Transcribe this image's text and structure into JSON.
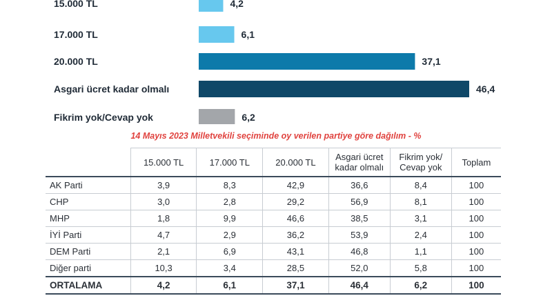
{
  "chart_data": {
    "type": "bar",
    "orientation": "horizontal",
    "categories": [
      "15.000 TL",
      "17.000 TL",
      "20.000 TL",
      "Asgari ücret kadar olmalı",
      "Fikrim yok/Cevap yok"
    ],
    "values": [
      4.2,
      6.1,
      37.1,
      46.4,
      6.2
    ],
    "value_labels": [
      "4,2",
      "6,1",
      "37,1",
      "46,4",
      "6,2"
    ],
    "colors": [
      "#67c8ee",
      "#67c8ee",
      "#0d7aaa",
      "#0f4868",
      "#a3a6aa"
    ],
    "title": "",
    "xlabel": "",
    "ylabel": ""
  },
  "table": {
    "title": "14 Mayıs 2023 Milletvekili seçiminde oy verilen partiye göre dağılım - %",
    "headers": [
      "",
      "15.000 TL",
      "17.000 TL",
      "20.000 TL",
      "Asgari ücret kadar olmalı",
      "Fikrim yok/ Cevap yok",
      "Toplam"
    ],
    "rows": [
      [
        "AK Parti",
        "3,9",
        "8,3",
        "42,9",
        "36,6",
        "8,4",
        "100"
      ],
      [
        "CHP",
        "3,0",
        "2,8",
        "29,2",
        "56,9",
        "8,1",
        "100"
      ],
      [
        "MHP",
        "1,8",
        "9,9",
        "46,6",
        "38,5",
        "3,1",
        "100"
      ],
      [
        "İYİ Parti",
        "4,7",
        "2,9",
        "36,2",
        "53,9",
        "2,4",
        "100"
      ],
      [
        "DEM Parti",
        "2,1",
        "6,9",
        "43,1",
        "46,8",
        "1,1",
        "100"
      ],
      [
        "Diğer parti",
        "10,3",
        "3,4",
        "28,5",
        "52,0",
        "5,8",
        "100"
      ]
    ],
    "total": [
      "ORTALAMA",
      "4,2",
      "6,1",
      "37,1",
      "46,4",
      "6,2",
      "100"
    ]
  }
}
